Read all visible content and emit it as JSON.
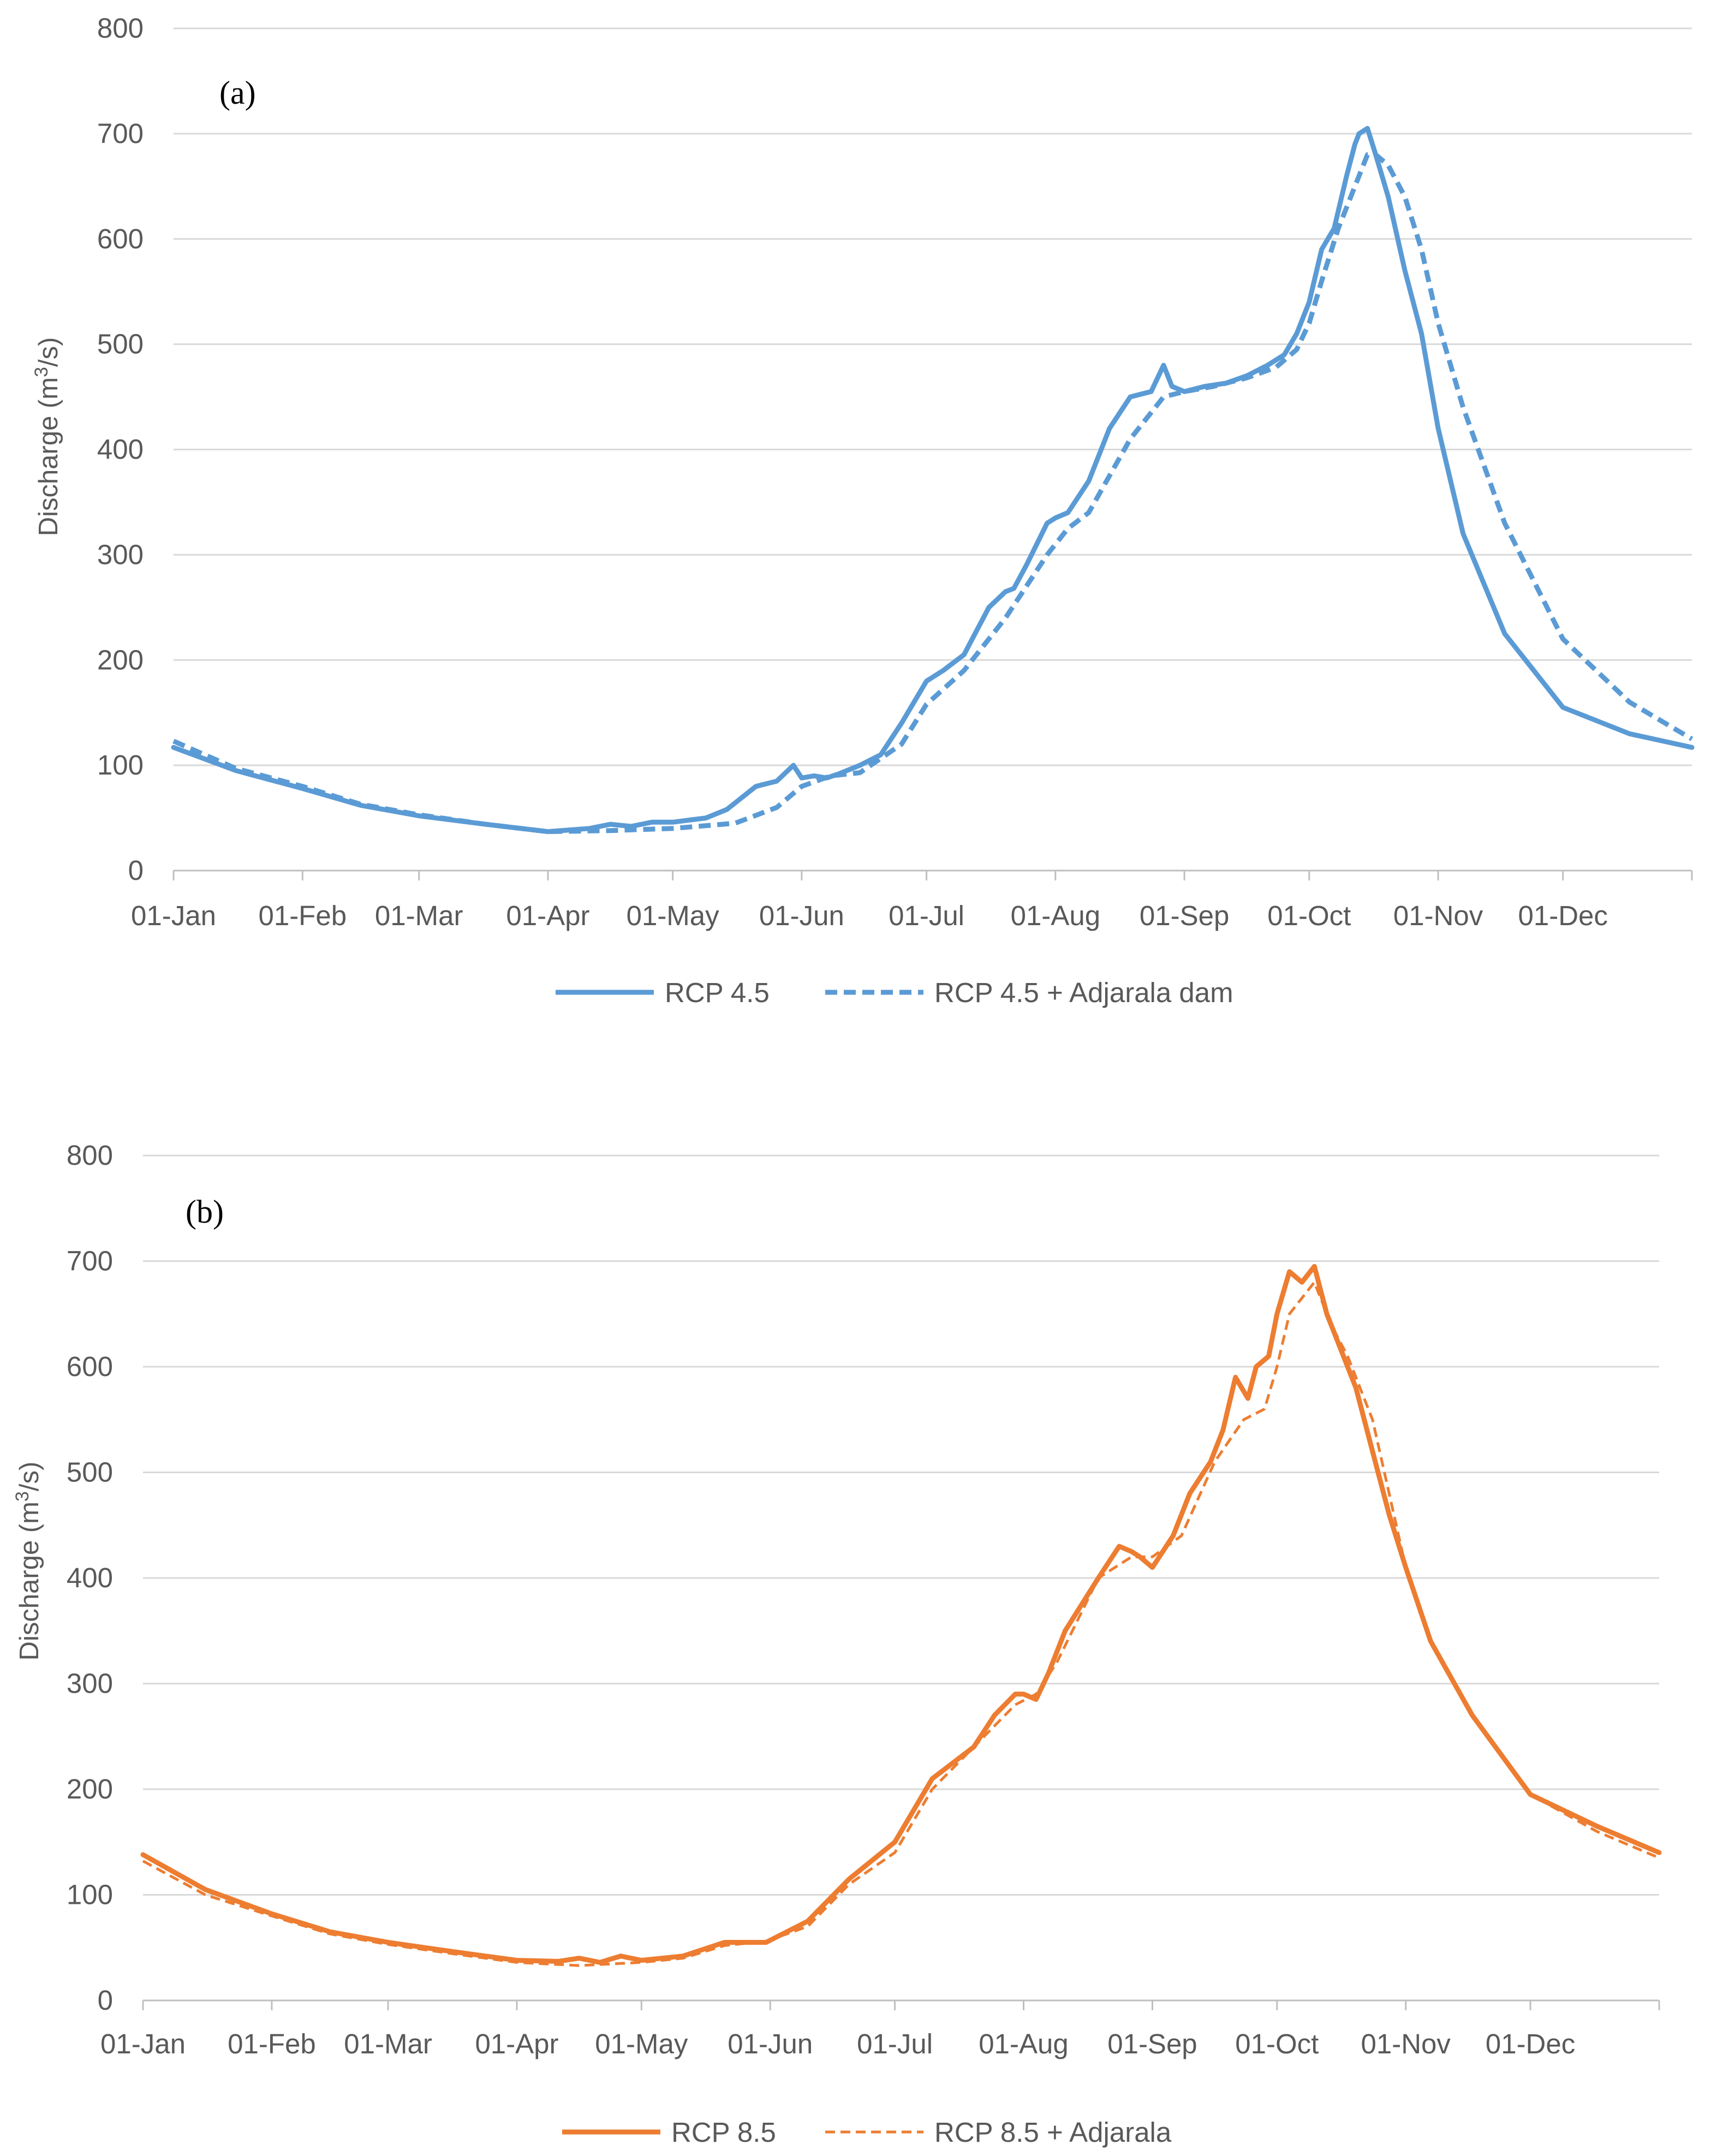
{
  "chart_data": [
    {
      "type": "line",
      "panel_label": "(a)",
      "title": "",
      "xlabel": "",
      "ylabel_main": "Discharge (m",
      "ylabel_sup": "3",
      "ylabel_tail": "/s)",
      "ylim": [
        0,
        800
      ],
      "yticks": [
        "0",
        "100",
        "200",
        "300",
        "400",
        "500",
        "600",
        "700",
        "800"
      ],
      "x_domain_days": [
        0,
        365
      ],
      "categories": [
        "01-Jan",
        "01-Feb",
        "01-Mar",
        "01-Apr",
        "01-May",
        "01-Jun",
        "01-Jul",
        "01-Aug",
        "01-Sep",
        "01-Oct",
        "01-Nov",
        "01-Dec"
      ],
      "category_days": [
        0,
        31,
        59,
        90,
        120,
        151,
        181,
        212,
        243,
        273,
        304,
        334
      ],
      "grid": true,
      "legend_position": "bottom",
      "series": [
        {
          "name": "RCP 4.5",
          "color": "#5b9bd5",
          "dash": "solid",
          "x": [
            0,
            15,
            31,
            45,
            59,
            75,
            90,
            100,
            105,
            110,
            115,
            120,
            128,
            133,
            140,
            145,
            149,
            151,
            154,
            157,
            160,
            165,
            170,
            175,
            178,
            181,
            185,
            190,
            196,
            200,
            202,
            205,
            210,
            212,
            215,
            220,
            225,
            230,
            235,
            238,
            240,
            243,
            248,
            253,
            258,
            263,
            267,
            270,
            273,
            276,
            279,
            282,
            284,
            285,
            287,
            289,
            292,
            296,
            300,
            304,
            310,
            320,
            334,
            350,
            365
          ],
          "values": [
            117,
            95,
            78,
            62,
            52,
            44,
            37,
            40,
            44,
            42,
            46,
            46,
            50,
            58,
            80,
            85,
            100,
            88,
            90,
            88,
            92,
            100,
            110,
            140,
            160,
            180,
            190,
            205,
            250,
            265,
            268,
            290,
            330,
            335,
            340,
            370,
            420,
            450,
            455,
            480,
            460,
            455,
            460,
            463,
            470,
            480,
            490,
            510,
            540,
            590,
            610,
            660,
            690,
            700,
            705,
            680,
            640,
            570,
            510,
            420,
            320,
            225,
            155,
            130,
            117
          ]
        },
        {
          "name": "RCP 4.5 + Adjarala dam",
          "color": "#5b9bd5",
          "dash": "dashed",
          "x": [
            0,
            15,
            31,
            45,
            59,
            75,
            90,
            105,
            120,
            135,
            145,
            151,
            158,
            165,
            175,
            181,
            190,
            200,
            210,
            215,
            220,
            230,
            238,
            243,
            250,
            258,
            265,
            270,
            273,
            276,
            280,
            284,
            287,
            289,
            292,
            296,
            300,
            304,
            310,
            320,
            334,
            350,
            365
          ],
          "values": [
            123,
            97,
            80,
            63,
            53,
            44,
            37,
            38,
            40,
            45,
            60,
            80,
            90,
            93,
            120,
            158,
            190,
            240,
            300,
            325,
            340,
            410,
            450,
            455,
            460,
            468,
            478,
            495,
            520,
            560,
            610,
            650,
            680,
            680,
            670,
            640,
            590,
            520,
            440,
            330,
            220,
            160,
            125
          ]
        }
      ]
    },
    {
      "type": "line",
      "panel_label": "(b)",
      "title": "",
      "xlabel": "",
      "ylabel_main": "Discharge (m",
      "ylabel_sup": "3",
      "ylabel_tail": "/s)",
      "ylim": [
        0,
        800
      ],
      "yticks": [
        "0",
        "100",
        "200",
        "300",
        "400",
        "500",
        "600",
        "700",
        "800"
      ],
      "x_domain_days": [
        0,
        365
      ],
      "categories": [
        "01-Jan",
        "01-Feb",
        "01-Mar",
        "01-Apr",
        "01-May",
        "01-Jun",
        "01-Jul",
        "01-Aug",
        "01-Sep",
        "01-Oct",
        "01-Nov",
        "01-Dec"
      ],
      "category_days": [
        0,
        31,
        59,
        90,
        120,
        151,
        181,
        212,
        243,
        273,
        304,
        334
      ],
      "grid": true,
      "legend_position": "bottom",
      "series": [
        {
          "name": "RCP 8.5",
          "color": "#ed7d31",
          "dash": "solid",
          "x": [
            0,
            15,
            31,
            45,
            59,
            75,
            90,
            100,
            105,
            110,
            115,
            120,
            130,
            140,
            150,
            160,
            170,
            181,
            190,
            200,
            205,
            210,
            212,
            215,
            218,
            222,
            226,
            230,
            235,
            238,
            240,
            243,
            248,
            252,
            257,
            260,
            263,
            266,
            268,
            271,
            273,
            276,
            279,
            282,
            285,
            288,
            292,
            296,
            300,
            304,
            310,
            320,
            334,
            350,
            365
          ],
          "values": [
            138,
            105,
            82,
            65,
            55,
            46,
            38,
            37,
            40,
            36,
            42,
            38,
            42,
            55,
            55,
            75,
            115,
            150,
            210,
            240,
            270,
            290,
            290,
            285,
            310,
            350,
            375,
            400,
            430,
            425,
            420,
            410,
            440,
            480,
            510,
            540,
            590,
            570,
            600,
            610,
            650,
            690,
            680,
            695,
            650,
            620,
            580,
            520,
            460,
            410,
            340,
            270,
            195,
            165,
            140
          ]
        },
        {
          "name": "RCP 8.5 + Adjarala",
          "color": "#ed7d31",
          "dash": "dashed",
          "x": [
            0,
            15,
            31,
            45,
            59,
            75,
            90,
            105,
            120,
            130,
            140,
            150,
            160,
            170,
            181,
            190,
            200,
            210,
            215,
            220,
            230,
            238,
            243,
            250,
            258,
            265,
            270,
            273,
            276,
            280,
            282,
            286,
            290,
            296,
            300,
            304,
            310,
            320,
            334,
            350,
            365
          ],
          "values": [
            132,
            100,
            80,
            63,
            53,
            44,
            36,
            33,
            36,
            40,
            52,
            56,
            70,
            110,
            140,
            200,
            240,
            280,
            290,
            320,
            400,
            420,
            420,
            440,
            510,
            550,
            560,
            600,
            650,
            670,
            680,
            640,
            610,
            550,
            480,
            410,
            340,
            270,
            195,
            160,
            135
          ]
        }
      ]
    }
  ]
}
